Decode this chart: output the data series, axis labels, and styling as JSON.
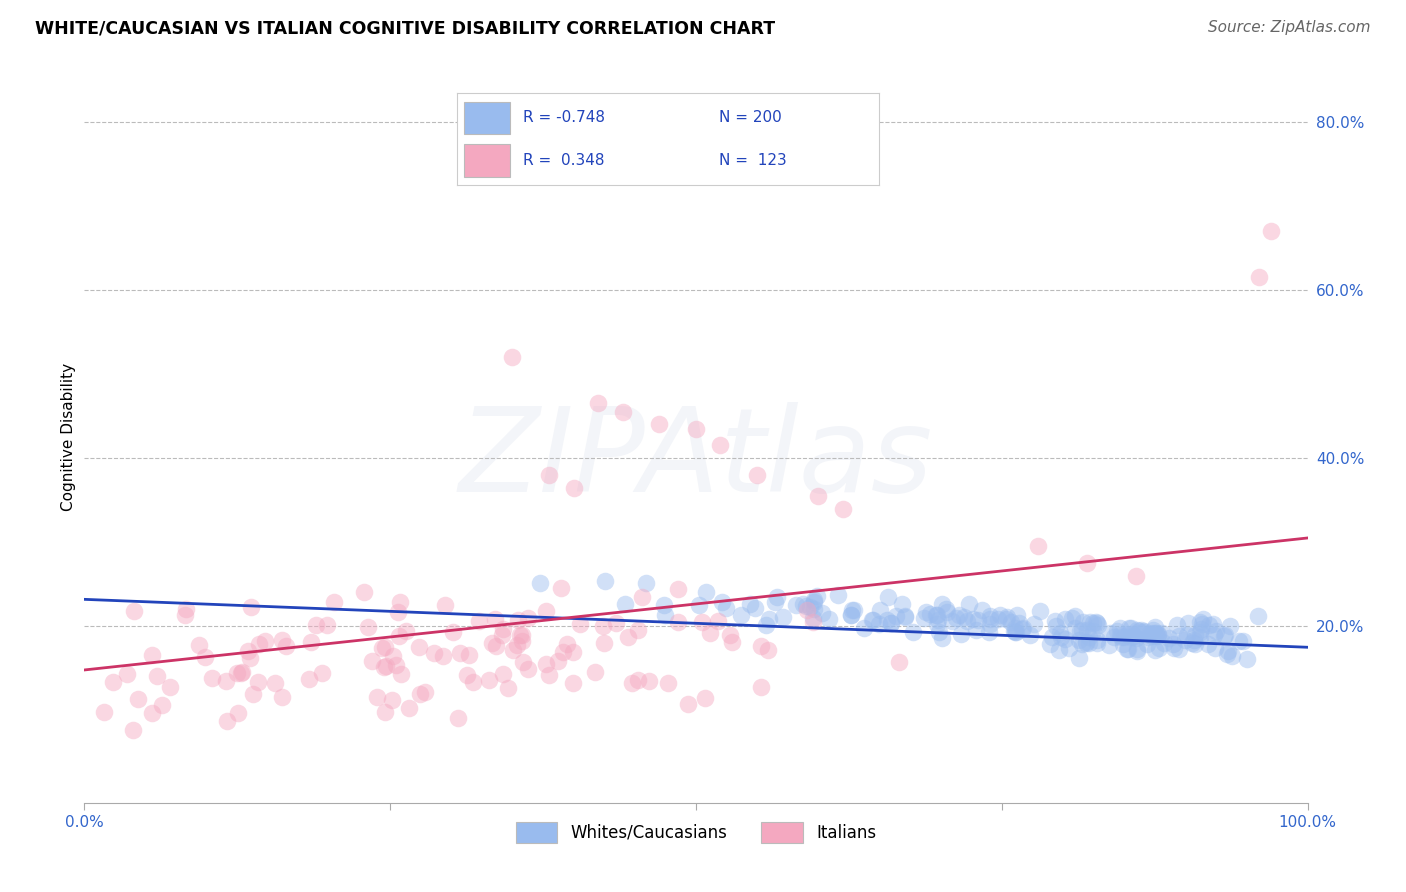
{
  "title": "WHITE/CAUCASIAN VS ITALIAN COGNITIVE DISABILITY CORRELATION CHART",
  "source": "Source: ZipAtlas.com",
  "ylabel": "Cognitive Disability",
  "blue_R": -0.748,
  "blue_N": 200,
  "pink_R": 0.348,
  "pink_N": 123,
  "blue_scatter_color": "#99bbee",
  "pink_scatter_color": "#f4a8c0",
  "blue_line_color": "#2244bb",
  "pink_line_color": "#cc3366",
  "xlim": [
    0.0,
    1.0
  ],
  "ylim": [
    -0.01,
    0.86
  ],
  "ytick_positions": [
    0.2,
    0.4,
    0.6,
    0.8
  ],
  "ytick_labels": [
    "20.0%",
    "40.0%",
    "60.0%",
    "80.0%"
  ],
  "xtick_positions": [
    0.0,
    0.25,
    0.5,
    0.75,
    1.0
  ],
  "xtick_labels": [
    "0.0%",
    "",
    "",
    "",
    "100.0%"
  ],
  "legend_labels": [
    "Whites/Caucasians",
    "Italians"
  ],
  "watermark": "ZIPAtlas",
  "blue_trend": [
    0.232,
    0.175
  ],
  "pink_trend": [
    0.148,
    0.305
  ],
  "title_fontsize": 12.5,
  "source_fontsize": 11,
  "tick_color": "#3366cc",
  "tick_fontsize": 11,
  "grid_color": "#bbbbbb",
  "watermark_alpha": 0.25
}
